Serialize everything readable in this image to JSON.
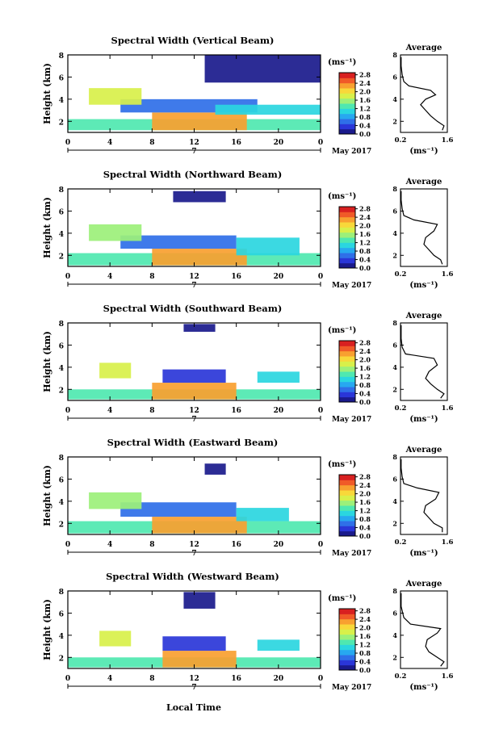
{
  "figure": {
    "xaxis_title": "Local Time",
    "cbar_unit": "(ms⁻¹)",
    "date_label": "May 2017",
    "day_label": "7",
    "avg_title": "Average",
    "avg_unit": "(ms⁻¹)"
  },
  "colors": {
    "colormap": [
      "#1a1a8c",
      "#2a36d8",
      "#2f6fe8",
      "#27a8f0",
      "#2ad6e0",
      "#4fe8b0",
      "#9cf07a",
      "#d8f04a",
      "#f8d83a",
      "#f8a030",
      "#f05a28",
      "#d82020"
    ]
  },
  "chart_data": [
    {
      "type": "heatmap",
      "title": "Spectral Width (Vertical Beam)",
      "xlabel": "",
      "ylabel": "Height (km)",
      "xlim": [
        0,
        24
      ],
      "ylim": [
        1,
        8
      ],
      "xticks": [
        "0",
        "4",
        "8",
        "12",
        "16",
        "20",
        "0"
      ],
      "yticks": [
        "2",
        "4",
        "6",
        "8"
      ],
      "colorbar": {
        "ticks": [
          "0.0",
          "0.4",
          "0.8",
          "1.2",
          "1.6",
          "2.0",
          "2.4",
          "2.8"
        ],
        "range": [
          0,
          2.9
        ]
      },
      "regions": [
        {
          "x": [
            0,
            24
          ],
          "y": [
            1.2,
            2.2
          ],
          "v": 1.4
        },
        {
          "x": [
            8,
            17
          ],
          "y": [
            1.2,
            2.8
          ],
          "v": 2.3
        },
        {
          "x": [
            5,
            18
          ],
          "y": [
            2.8,
            4.0
          ],
          "v": 0.5
        },
        {
          "x": [
            2,
            7
          ],
          "y": [
            3.5,
            5.0
          ],
          "v": 1.7
        },
        {
          "x": [
            14,
            24
          ],
          "y": [
            2.6,
            3.5
          ],
          "v": 1.1
        },
        {
          "x": [
            13,
            24
          ],
          "y": [
            5.5,
            8.0
          ],
          "v": 0.2
        }
      ],
      "average": {
        "xlim": [
          0.2,
          1.6
        ],
        "xticks": [
          "0.2",
          "1.6"
        ],
        "ylim": [
          1,
          8
        ],
        "yticks": [
          "2",
          "4",
          "6",
          "8"
        ],
        "x": [
          1.45,
          1.5,
          1.3,
          1.1,
          0.95,
          0.8,
          0.95,
          1.25,
          1.1,
          0.45,
          0.3,
          0.25,
          0.22,
          0.22
        ],
        "y": [
          1.2,
          1.6,
          2.0,
          2.5,
          3.0,
          3.5,
          4.0,
          4.4,
          4.8,
          5.2,
          5.6,
          6.2,
          7.0,
          7.8
        ]
      }
    },
    {
      "type": "heatmap",
      "title": "Spectral Width (Northward Beam)",
      "xlabel": "",
      "ylabel": "Height (km)",
      "xlim": [
        0,
        24
      ],
      "ylim": [
        1,
        8
      ],
      "xticks": [
        "0",
        "4",
        "8",
        "12",
        "16",
        "20",
        "0"
      ],
      "yticks": [
        "2",
        "4",
        "6",
        "8"
      ],
      "colorbar": {
        "ticks": [
          "0.0",
          "0.4",
          "0.8",
          "1.2",
          "1.6",
          "2.0",
          "2.4",
          "2.8"
        ],
        "range": [
          0,
          2.9
        ]
      },
      "regions": [
        {
          "x": [
            0,
            24
          ],
          "y": [
            1.1,
            2.2
          ],
          "v": 1.3
        },
        {
          "x": [
            8,
            17
          ],
          "y": [
            1.1,
            2.6
          ],
          "v": 2.3
        },
        {
          "x": [
            5,
            16
          ],
          "y": [
            2.6,
            3.8
          ],
          "v": 0.5
        },
        {
          "x": [
            2,
            7
          ],
          "y": [
            3.3,
            4.8
          ],
          "v": 1.6
        },
        {
          "x": [
            16,
            22
          ],
          "y": [
            2.0,
            3.6
          ],
          "v": 1.2
        },
        {
          "x": [
            10,
            15
          ],
          "y": [
            6.8,
            7.8
          ],
          "v": 0.2
        }
      ],
      "average": {
        "xlim": [
          0.2,
          1.6
        ],
        "xticks": [
          "0.2",
          "1.6"
        ],
        "ylim": [
          1,
          8
        ],
        "yticks": [
          "2",
          "4",
          "6",
          "8"
        ],
        "x": [
          1.45,
          1.4,
          1.2,
          1.05,
          0.9,
          0.95,
          1.2,
          1.3,
          0.6,
          0.3,
          0.25,
          0.22,
          0.22
        ],
        "y": [
          1.2,
          1.6,
          2.0,
          2.5,
          3.0,
          3.6,
          4.2,
          4.8,
          5.2,
          5.6,
          6.2,
          7.0,
          7.8
        ]
      }
    },
    {
      "type": "heatmap",
      "title": "Spectral Width (Southward Beam)",
      "xlabel": "",
      "ylabel": "Height (km)",
      "xlim": [
        0,
        24
      ],
      "ylim": [
        1,
        8
      ],
      "xticks": [
        "0",
        "4",
        "8",
        "12",
        "16",
        "20",
        "0"
      ],
      "yticks": [
        "2",
        "4",
        "6",
        "8"
      ],
      "colorbar": {
        "ticks": [
          "0.0",
          "0.4",
          "0.8",
          "1.2",
          "1.6",
          "2.0",
          "2.4",
          "2.8"
        ],
        "range": [
          0,
          2.9
        ]
      },
      "regions": [
        {
          "x": [
            0,
            24
          ],
          "y": [
            1.1,
            2.0
          ],
          "v": 1.3
        },
        {
          "x": [
            8,
            16
          ],
          "y": [
            1.1,
            2.6
          ],
          "v": 2.2
        },
        {
          "x": [
            9,
            15
          ],
          "y": [
            2.6,
            3.8
          ],
          "v": 0.4
        },
        {
          "x": [
            3,
            6
          ],
          "y": [
            3.0,
            4.4
          ],
          "v": 1.7
        },
        {
          "x": [
            18,
            22
          ],
          "y": [
            2.6,
            3.6
          ],
          "v": 1.2
        },
        {
          "x": [
            11,
            14
          ],
          "y": [
            7.2,
            7.9
          ],
          "v": 0.2
        }
      ],
      "average": {
        "xlim": [
          0.2,
          1.6
        ],
        "xticks": [
          "0.2",
          "1.6"
        ],
        "ylim": [
          1,
          8
        ],
        "yticks": [
          "2",
          "4",
          "6",
          "8"
        ],
        "x": [
          1.4,
          1.5,
          1.3,
          1.1,
          0.95,
          1.05,
          1.3,
          1.2,
          0.35,
          0.25,
          0.22,
          0.22
        ],
        "y": [
          1.2,
          1.6,
          2.0,
          2.5,
          3.0,
          3.6,
          4.2,
          4.8,
          5.2,
          5.8,
          6.6,
          7.8
        ]
      }
    },
    {
      "type": "heatmap",
      "title": "Spectral Width (Eastward Beam)",
      "xlabel": "",
      "ylabel": "Height (km)",
      "xlim": [
        0,
        24
      ],
      "ylim": [
        1,
        8
      ],
      "xticks": [
        "0",
        "4",
        "8",
        "12",
        "16",
        "20",
        "0"
      ],
      "yticks": [
        "2",
        "4",
        "6",
        "8"
      ],
      "colorbar": {
        "ticks": [
          "0.0",
          "0.4",
          "0.8",
          "1.2",
          "1.6",
          "2.0",
          "2.4",
          "2.8"
        ],
        "range": [
          0,
          2.9
        ]
      },
      "regions": [
        {
          "x": [
            0,
            24
          ],
          "y": [
            1.1,
            2.2
          ],
          "v": 1.3
        },
        {
          "x": [
            8,
            17
          ],
          "y": [
            1.1,
            2.6
          ],
          "v": 2.3
        },
        {
          "x": [
            5,
            16
          ],
          "y": [
            2.6,
            3.9
          ],
          "v": 0.5
        },
        {
          "x": [
            2,
            7
          ],
          "y": [
            3.3,
            4.8
          ],
          "v": 1.6
        },
        {
          "x": [
            16,
            21
          ],
          "y": [
            2.2,
            3.4
          ],
          "v": 1.2
        },
        {
          "x": [
            13,
            15
          ],
          "y": [
            6.4,
            7.4
          ],
          "v": 0.2
        }
      ],
      "average": {
        "xlim": [
          0.2,
          1.6
        ],
        "xticks": [
          "0.2",
          "1.6"
        ],
        "ylim": [
          1,
          8
        ],
        "yticks": [
          "2",
          "4",
          "6",
          "8"
        ],
        "x": [
          1.45,
          1.45,
          1.2,
          1.05,
          0.9,
          0.95,
          1.25,
          1.35,
          0.7,
          0.3,
          0.25,
          0.22,
          0.22
        ],
        "y": [
          1.2,
          1.6,
          2.0,
          2.5,
          3.0,
          3.6,
          4.2,
          4.8,
          5.2,
          5.6,
          6.2,
          7.0,
          7.8
        ]
      }
    },
    {
      "type": "heatmap",
      "title": "Spectral Width (Westward Beam)",
      "xlabel": "Local Time",
      "ylabel": "Height (km)",
      "xlim": [
        0,
        24
      ],
      "ylim": [
        1,
        8
      ],
      "xticks": [
        "0",
        "4",
        "8",
        "12",
        "16",
        "20",
        "0"
      ],
      "yticks": [
        "2",
        "4",
        "6",
        "8"
      ],
      "colorbar": {
        "ticks": [
          "0.0",
          "0.4",
          "0.8",
          "1.2",
          "1.6",
          "2.0",
          "2.4",
          "2.8"
        ],
        "range": [
          0,
          2.9
        ]
      },
      "regions": [
        {
          "x": [
            0,
            24
          ],
          "y": [
            1.1,
            2.0
          ],
          "v": 1.3
        },
        {
          "x": [
            9,
            16
          ],
          "y": [
            1.1,
            2.6
          ],
          "v": 2.2
        },
        {
          "x": [
            9,
            15
          ],
          "y": [
            2.6,
            3.9
          ],
          "v": 0.4
        },
        {
          "x": [
            3,
            6
          ],
          "y": [
            3.0,
            4.4
          ],
          "v": 1.7
        },
        {
          "x": [
            18,
            22
          ],
          "y": [
            2.6,
            3.6
          ],
          "v": 1.2
        },
        {
          "x": [
            11,
            14
          ],
          "y": [
            6.4,
            7.9
          ],
          "v": 0.2
        }
      ],
      "average": {
        "xlim": [
          0.2,
          1.6
        ],
        "xticks": [
          "0.2",
          "1.6"
        ],
        "ylim": [
          1,
          8
        ],
        "yticks": [
          "2",
          "4",
          "6",
          "8"
        ],
        "x": [
          1.4,
          1.5,
          1.3,
          1.05,
          0.95,
          1.0,
          1.3,
          1.4,
          0.5,
          0.3,
          0.22,
          0.22
        ],
        "y": [
          1.2,
          1.6,
          2.0,
          2.5,
          3.0,
          3.6,
          4.2,
          4.6,
          5.0,
          5.6,
          6.6,
          7.8
        ]
      }
    }
  ]
}
